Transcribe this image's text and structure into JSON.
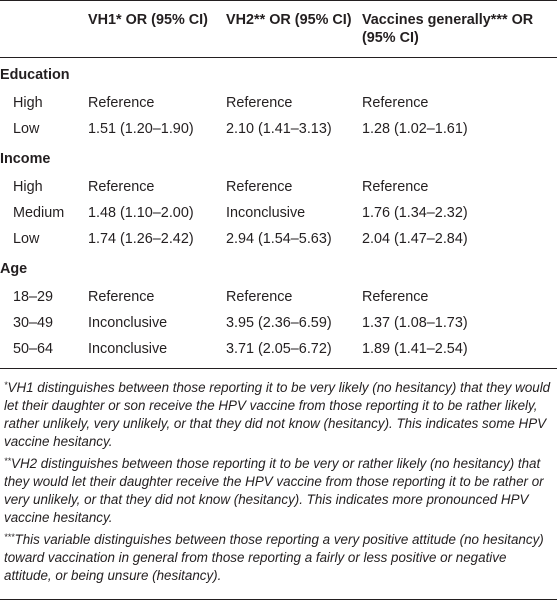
{
  "table": {
    "headers": [
      "",
      "VH1* OR (95% CI)",
      "VH2** OR (95% CI)",
      "Vaccines generally*** OR (95% CI)"
    ],
    "groups": [
      {
        "label": "Education",
        "rows": [
          {
            "label": "High",
            "vh1": "Reference",
            "vh2": "Reference",
            "vg": "Reference"
          },
          {
            "label": "Low",
            "vh1": "1.51 (1.20–1.90)",
            "vh2": "2.10 (1.41–3.13)",
            "vg": "1.28 (1.02–1.61)"
          }
        ]
      },
      {
        "label": "Income",
        "rows": [
          {
            "label": "High",
            "vh1": "Reference",
            "vh2": "Reference",
            "vg": "Reference"
          },
          {
            "label": "Medium",
            "vh1": "1.48 (1.10–2.00)",
            "vh2": "Inconclusive",
            "vg": "1.76 (1.34–2.32)"
          },
          {
            "label": "Low",
            "vh1": "1.74 (1.26–2.42)",
            "vh2": "2.94 (1.54–5.63)",
            "vg": "2.04 (1.47–2.84)"
          }
        ]
      },
      {
        "label": "Age",
        "rows": [
          {
            "label": "18–29",
            "vh1": "Reference",
            "vh2": "Reference",
            "vg": "Reference"
          },
          {
            "label": "30–49",
            "vh1": "Inconclusive",
            "vh2": "3.95 (2.36–6.59)",
            "vg": "1.37 (1.08–1.73)"
          },
          {
            "label": "50–64",
            "vh1": "Inconclusive",
            "vh2": "3.71 (2.05–6.72)",
            "vg": "1.89 (1.41–2.54)"
          }
        ]
      }
    ]
  },
  "footnotes": [
    {
      "mark": "*",
      "text": "VH1 distinguishes between those reporting it to be very likely (no hesitancy) that they would let their daughter or son receive the HPV vaccine from those reporting it to be rather likely, rather unlikely, very unlikely, or that they did not know (hesitancy). This indicates some HPV vaccine hesitancy."
    },
    {
      "mark": "**",
      "text": "VH2 distinguishes between those reporting it to be very or rather likely (no hesitancy) that they would let their daughter receive the HPV vaccine from those reporting it to be rather or very unlikely, or that they did not know (hesitancy). This indicates more pronounced HPV vaccine hesitancy."
    },
    {
      "mark": "***",
      "text": "This variable distinguishes between those reporting a very positive attitude (no hesitancy) toward vaccination in general from those reporting a fairly or less positive or negative attitude, or being unsure (hesitancy)."
    }
  ]
}
